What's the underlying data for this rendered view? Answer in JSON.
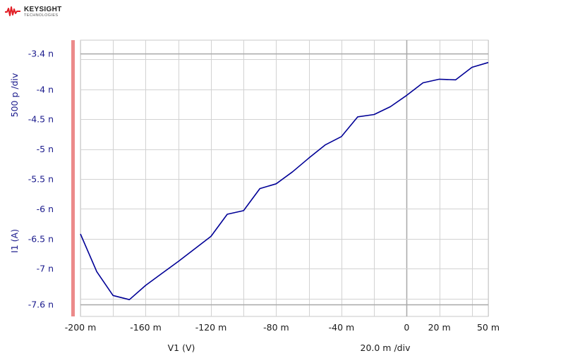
{
  "brand": {
    "name": "KEYSIGHT",
    "sub": "TECHNOLOGIES",
    "color": "#e21f26"
  },
  "chart_data": {
    "type": "line",
    "xlabel": "V1 (V)",
    "ylabel": "I1 (A)",
    "x_div_label": "20.0 m /div",
    "y_div_label": "500 p /div",
    "xlim": [
      -200,
      50
    ],
    "ylim": [
      -7.6,
      -3.4
    ],
    "x_unit": "mV",
    "y_unit": "nA",
    "x_ticks": [
      {
        "v": -200,
        "label": "-200 m"
      },
      {
        "v": -160,
        "label": "-160 m"
      },
      {
        "v": -120,
        "label": "-120 m"
      },
      {
        "v": -80,
        "label": "-80 m"
      },
      {
        "v": -40,
        "label": "-40 m"
      },
      {
        "v": 0,
        "label": "0"
      },
      {
        "v": 20,
        "label": "20 m"
      },
      {
        "v": 50,
        "label": "50 m"
      }
    ],
    "y_ticks": [
      {
        "v": -3.4,
        "label": "-3.4 n"
      },
      {
        "v": -4,
        "label": "-4 n"
      },
      {
        "v": -4.5,
        "label": "-4.5 n"
      },
      {
        "v": -5,
        "label": "-5 n"
      },
      {
        "v": -5.5,
        "label": "-5.5 n"
      },
      {
        "v": -6,
        "label": "-6 n"
      },
      {
        "v": -6.5,
        "label": "-6.5 n"
      },
      {
        "v": -7,
        "label": "-7 n"
      },
      {
        "v": -7.6,
        "label": "-7.6 n"
      }
    ],
    "x_grid": [
      -200,
      -180,
      -160,
      -140,
      -120,
      -100,
      -80,
      -60,
      -40,
      -20,
      0,
      20,
      40,
      50
    ],
    "y_grid": [
      -3.4,
      -3.5,
      -4,
      -4.5,
      -5,
      -5.5,
      -6,
      -6.5,
      -7,
      -7.5,
      -7.6
    ],
    "grid": true,
    "series": [
      {
        "color": "#000096",
        "x": [
          -200,
          -190,
          -180,
          -170,
          -160,
          -150,
          -140,
          -130,
          -120,
          -110,
          -100,
          -90,
          -80,
          -70,
          -60,
          -50,
          -40,
          -30,
          -20,
          -10,
          0,
          10,
          20,
          30,
          40,
          50
        ],
        "y": [
          -6.42,
          -7.05,
          -7.45,
          -7.52,
          -7.28,
          -7.08,
          -6.88,
          -6.67,
          -6.46,
          -6.09,
          -6.03,
          -5.66,
          -5.58,
          -5.38,
          -5.15,
          -4.93,
          -4.79,
          -4.46,
          -4.42,
          -4.29,
          -4.1,
          -3.89,
          -3.83,
          -3.84,
          -3.63,
          -3.55
        ]
      }
    ]
  }
}
